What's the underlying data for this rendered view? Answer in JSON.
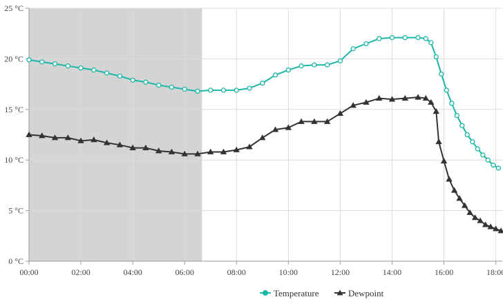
{
  "chart_data": {
    "type": "line",
    "x_axis": {
      "ticks": [
        0,
        2,
        4,
        6,
        8,
        10,
        12,
        14,
        16,
        18
      ],
      "tick_labels": [
        "00:00",
        "02:00",
        "04:00",
        "06:00",
        "08:00",
        "10:00",
        "12:00",
        "14:00",
        "16:00",
        "18:00"
      ],
      "range": [
        0,
        18.25
      ]
    },
    "y_axis": {
      "ticks": [
        0,
        5,
        10,
        15,
        20,
        25
      ],
      "tick_labels": [
        "0 °C",
        "5 °C",
        "10 °C",
        "15 °C",
        "20 °C",
        "25 °C"
      ],
      "range": [
        0,
        25
      ]
    },
    "grid": true,
    "shaded_region": {
      "x_start": 0,
      "x_end": 6.67
    },
    "legend": {
      "position": "bottom-right"
    },
    "series": [
      {
        "name": "Temperature",
        "color": "#1ab7a7",
        "marker": "circle",
        "points": [
          [
            0.0,
            19.9
          ],
          [
            0.5,
            19.7
          ],
          [
            1.0,
            19.5
          ],
          [
            1.5,
            19.3
          ],
          [
            2.0,
            19.1
          ],
          [
            2.5,
            18.9
          ],
          [
            3.0,
            18.6
          ],
          [
            3.5,
            18.3
          ],
          [
            4.0,
            17.9
          ],
          [
            4.5,
            17.7
          ],
          [
            5.0,
            17.4
          ],
          [
            5.5,
            17.2
          ],
          [
            6.0,
            17.0
          ],
          [
            6.5,
            16.8
          ],
          [
            7.0,
            16.9
          ],
          [
            7.5,
            16.9
          ],
          [
            8.0,
            16.9
          ],
          [
            8.5,
            17.1
          ],
          [
            9.0,
            17.6
          ],
          [
            9.5,
            18.4
          ],
          [
            10.0,
            18.9
          ],
          [
            10.5,
            19.3
          ],
          [
            11.0,
            19.4
          ],
          [
            11.5,
            19.4
          ],
          [
            12.0,
            19.8
          ],
          [
            12.5,
            21.0
          ],
          [
            13.0,
            21.5
          ],
          [
            13.5,
            22.0
          ],
          [
            14.0,
            22.1
          ],
          [
            14.5,
            22.1
          ],
          [
            15.0,
            22.1
          ],
          [
            15.3,
            22.0
          ],
          [
            15.5,
            21.6
          ],
          [
            15.7,
            20.2
          ],
          [
            15.9,
            18.5
          ],
          [
            16.1,
            16.9
          ],
          [
            16.3,
            15.6
          ],
          [
            16.5,
            14.4
          ],
          [
            16.7,
            13.4
          ],
          [
            16.9,
            12.5
          ],
          [
            17.1,
            11.8
          ],
          [
            17.3,
            11.1
          ],
          [
            17.5,
            10.5
          ],
          [
            17.7,
            10.0
          ],
          [
            17.9,
            9.5
          ],
          [
            18.1,
            9.2
          ]
        ]
      },
      {
        "name": "Dewpoint",
        "color": "#333333",
        "marker": "triangle",
        "points": [
          [
            0.0,
            12.5
          ],
          [
            0.5,
            12.4
          ],
          [
            1.0,
            12.2
          ],
          [
            1.5,
            12.2
          ],
          [
            2.0,
            11.9
          ],
          [
            2.5,
            12.0
          ],
          [
            3.0,
            11.7
          ],
          [
            3.5,
            11.5
          ],
          [
            4.0,
            11.2
          ],
          [
            4.5,
            11.2
          ],
          [
            5.0,
            10.9
          ],
          [
            5.5,
            10.8
          ],
          [
            6.0,
            10.6
          ],
          [
            6.5,
            10.6
          ],
          [
            7.0,
            10.8
          ],
          [
            7.5,
            10.8
          ],
          [
            8.0,
            11.0
          ],
          [
            8.5,
            11.3
          ],
          [
            9.0,
            12.2
          ],
          [
            9.5,
            13.0
          ],
          [
            10.0,
            13.2
          ],
          [
            10.5,
            13.8
          ],
          [
            11.0,
            13.8
          ],
          [
            11.5,
            13.8
          ],
          [
            12.0,
            14.6
          ],
          [
            12.5,
            15.4
          ],
          [
            13.0,
            15.7
          ],
          [
            13.5,
            16.1
          ],
          [
            14.0,
            16.0
          ],
          [
            14.5,
            16.1
          ],
          [
            15.0,
            16.2
          ],
          [
            15.3,
            16.1
          ],
          [
            15.5,
            15.7
          ],
          [
            15.7,
            14.8
          ],
          [
            15.8,
            11.8
          ],
          [
            16.0,
            9.9
          ],
          [
            16.2,
            8.1
          ],
          [
            16.4,
            7.0
          ],
          [
            16.6,
            6.2
          ],
          [
            16.8,
            5.5
          ],
          [
            17.0,
            4.8
          ],
          [
            17.2,
            4.3
          ],
          [
            17.4,
            4.0
          ],
          [
            17.6,
            3.6
          ],
          [
            17.8,
            3.4
          ],
          [
            18.0,
            3.2
          ],
          [
            18.2,
            3.0
          ]
        ]
      }
    ]
  }
}
